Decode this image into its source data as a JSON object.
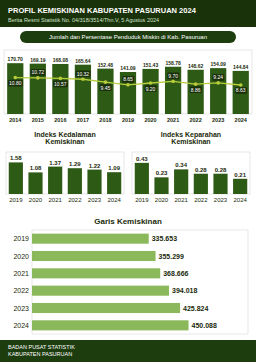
{
  "title": "PROFIL KEMISKINAN KABUPATEN PASURUAN 2024",
  "subtitle": "Berita Resmi Statistik No. 04/318/3514/Thn.V, 5 Agustus 2024",
  "footer": [
    "BADAN PUSAT STATISTIK",
    "KABUPATEN PASURUAN"
  ],
  "chart_data": [
    {
      "type": "bar",
      "title": "Jumlah dan Persentase Penduduk Miskin di Kab. Pasuruan",
      "categories": [
        "2014",
        "2015",
        "2016",
        "2017",
        "2018",
        "2019",
        "2020",
        "2021",
        "2022",
        "2023",
        "2024"
      ],
      "series": [
        {
          "type": "bar",
          "color": "#2d5a14",
          "values": [
            170.7,
            169.19,
            168.08,
            165.64,
            152.48,
            141.09,
            151.43,
            158.78,
            148.62,
            154.09,
            144.84
          ],
          "value_labels": [
            "170.70",
            "169.19",
            "168.08",
            "165.64",
            "152.48",
            "141.09",
            "151.43",
            "158.78",
            "148.62",
            "154.09",
            "144.84"
          ]
        },
        {
          "type": "line",
          "axis": "y2",
          "color": "#b8cc3c",
          "marker": "circle",
          "values": [
            10.8,
            10.72,
            10.57,
            10.32,
            9.45,
            8.65,
            9.2,
            9.7,
            8.86,
            9.24,
            8.63
          ],
          "value_labels": [
            "10.80",
            "10.72",
            "10.57",
            "10.32",
            "9.45",
            "8.65",
            "9.20",
            "9.70",
            "8.86",
            "9.24",
            "8.63"
          ]
        }
      ],
      "ylim": [
        0,
        215
      ],
      "y2lim": [
        0,
        19
      ],
      "data_labels": true,
      "tick_labels": "x"
    },
    {
      "type": "bar",
      "title": "Indeks Kedalaman\nKemiskinan",
      "categories": [
        "2019",
        "2020",
        "2021",
        "2022",
        "2023",
        "2024"
      ],
      "values": [
        1.58,
        1.08,
        1.37,
        1.29,
        1.22,
        1.09
      ],
      "color": "#2d5a14",
      "ylim": [
        0,
        2.1
      ],
      "data_labels": true,
      "tick_labels": "x"
    },
    {
      "type": "bar",
      "title": "Indeks Keparahan\nKemiskinan",
      "categories": [
        "2019",
        "2020",
        "2021",
        "2022",
        "2023",
        "2024"
      ],
      "values": [
        0.43,
        0.23,
        0.34,
        0.28,
        0.28,
        0.21
      ],
      "color": "#2d5a14",
      "ylim": [
        0,
        0.58
      ],
      "data_labels": true,
      "tick_labels": "x"
    },
    {
      "type": "bar",
      "orientation": "horizontal",
      "title": "Garis Kemiskinan",
      "categories": [
        "2019",
        "2020",
        "2021",
        "2022",
        "2023",
        "2024"
      ],
      "values": [
        335653,
        355299,
        368666,
        394018,
        425824,
        450088
      ],
      "value_labels": [
        "335.653",
        "355.299",
        "368.666",
        "394.018",
        "425.824",
        "450.088"
      ],
      "color": "#8ab85a",
      "xlim": [
        0,
        621121.44
      ],
      "data_labels": true,
      "tick_labels": "y"
    }
  ]
}
